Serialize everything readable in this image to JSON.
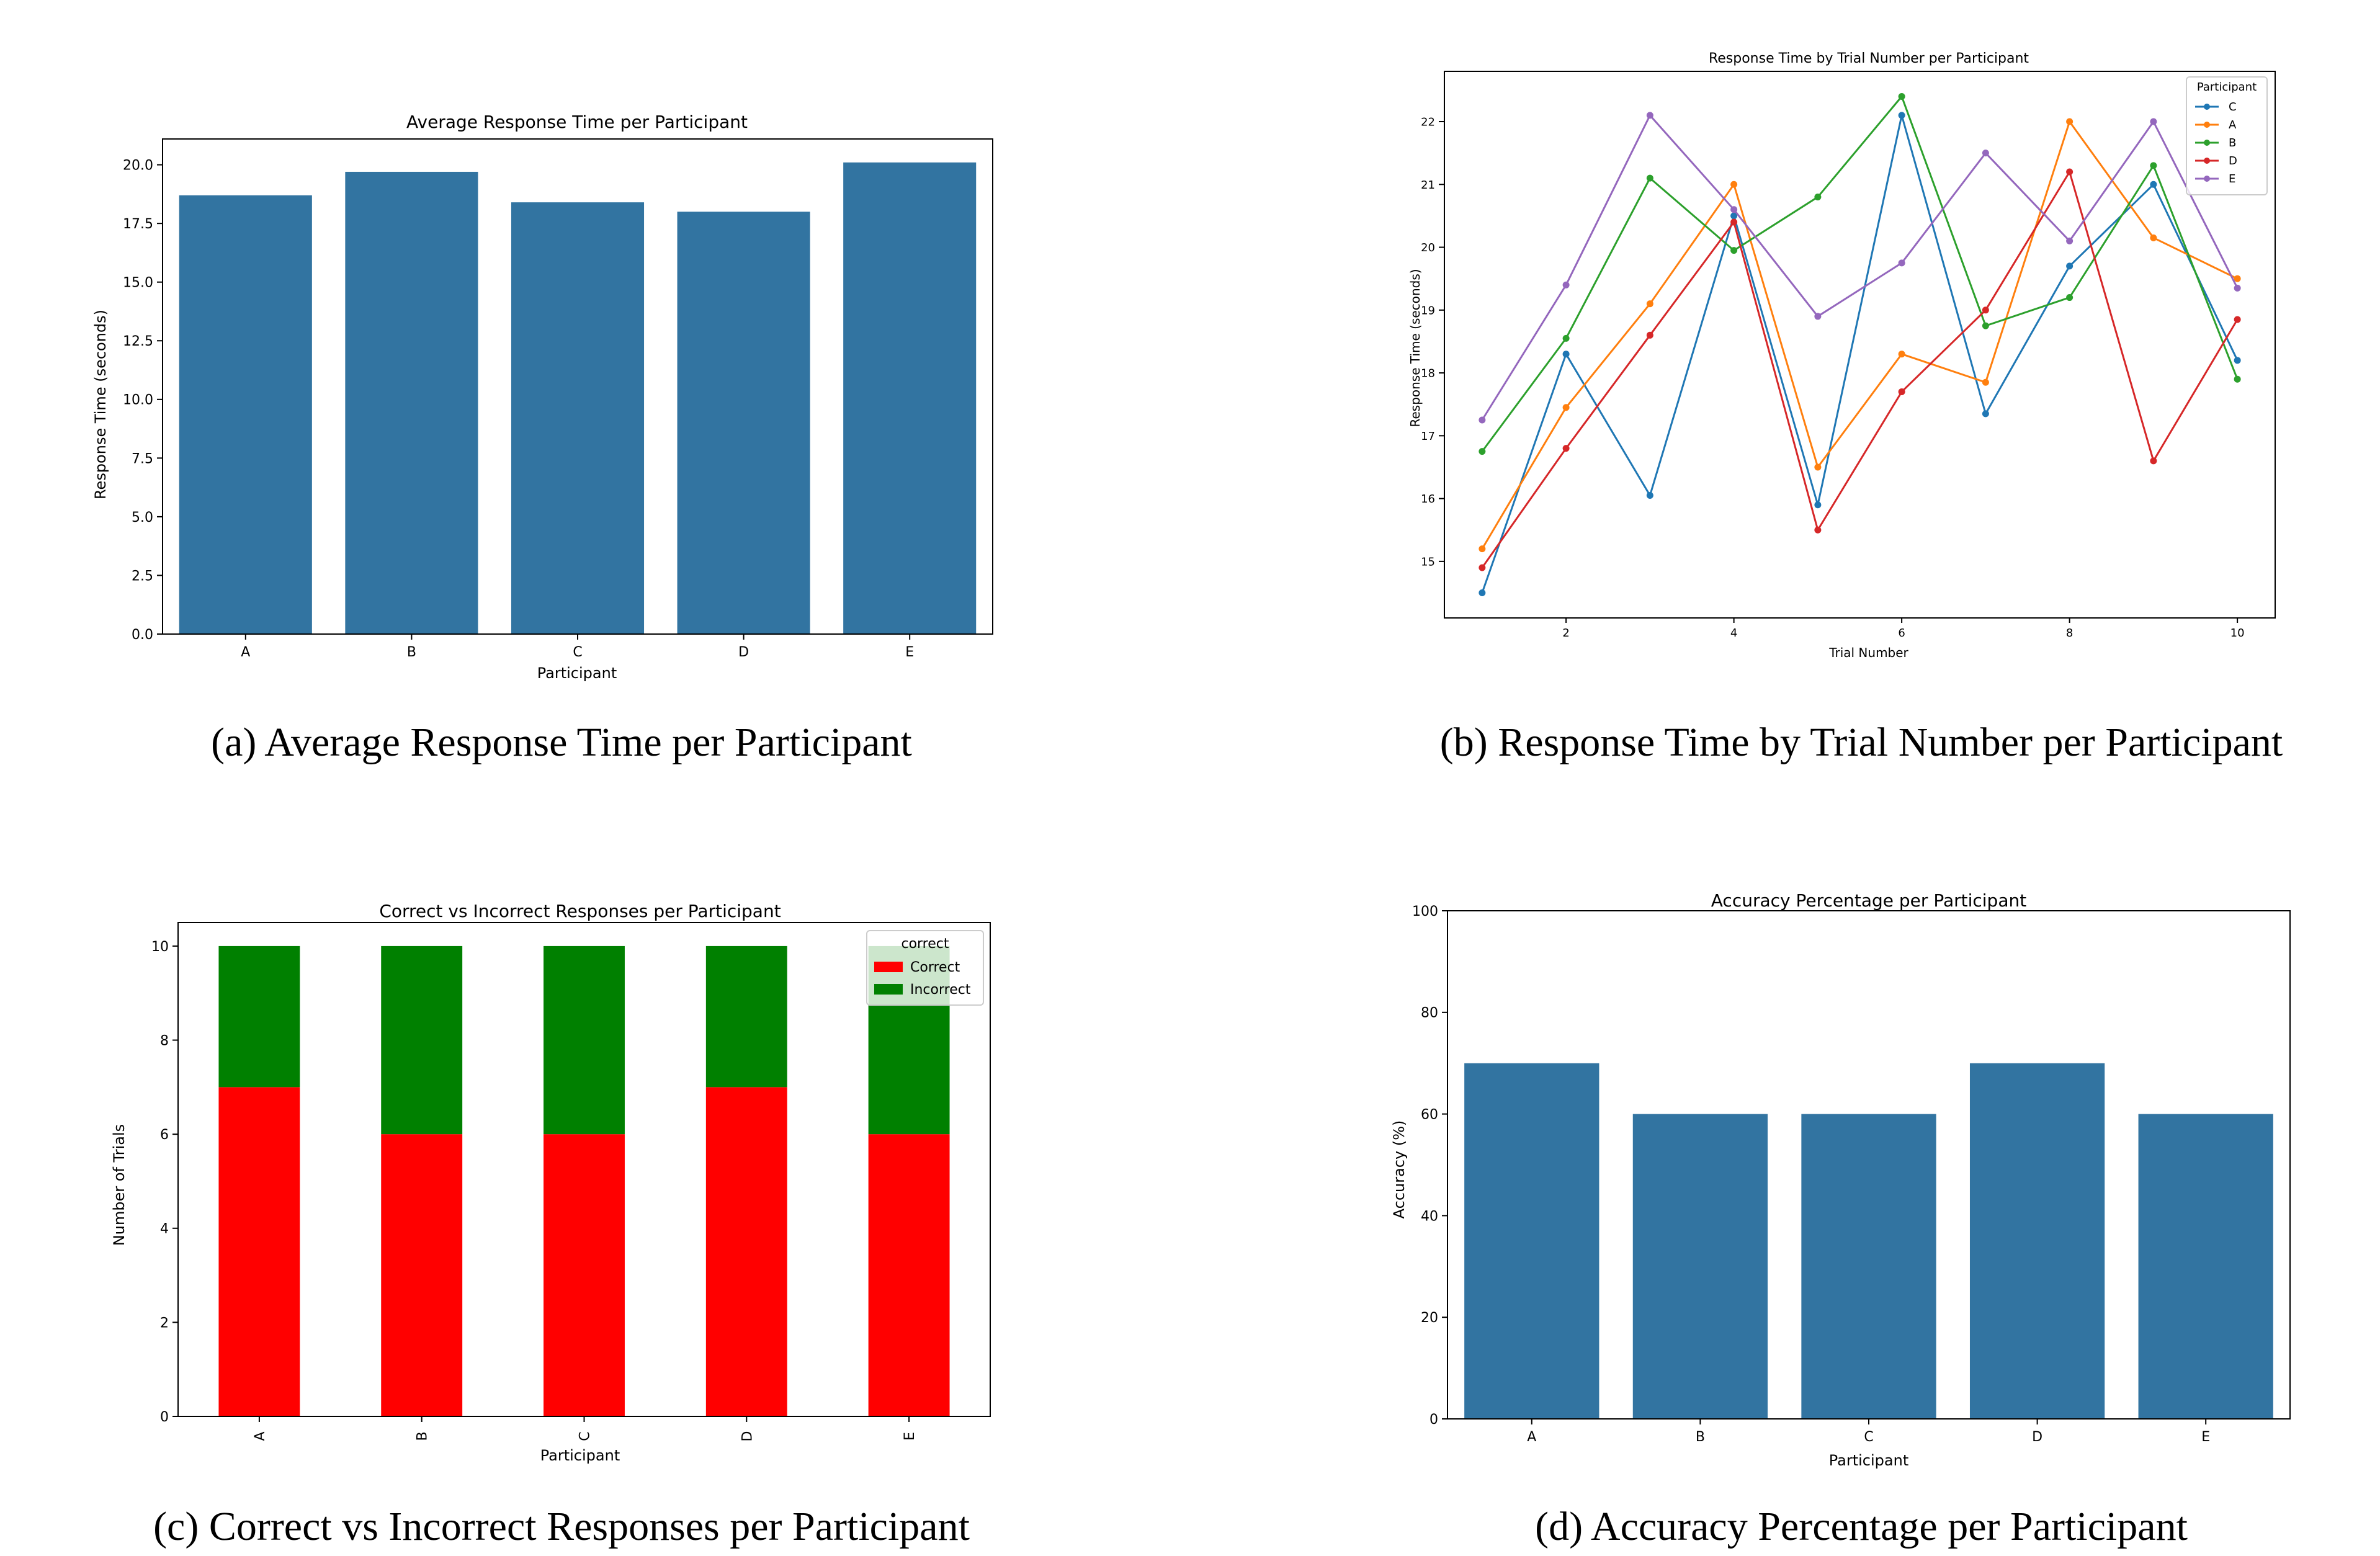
{
  "chart_data": [
    {
      "id": "a",
      "type": "bar",
      "title": "Average Response Time per Participant",
      "caption": "(a) Average Response Time per Participant",
      "xlabel": "Participant",
      "ylabel": "Response Time (seconds)",
      "categories": [
        "A",
        "B",
        "C",
        "D",
        "E"
      ],
      "values": [
        18.7,
        19.7,
        18.4,
        18.0,
        20.1
      ],
      "ylim": [
        0,
        21.1
      ],
      "yticks": [
        0.0,
        2.5,
        5.0,
        7.5,
        10.0,
        12.5,
        15.0,
        17.5,
        20.0
      ],
      "ytick_labels": [
        "0.0",
        "2.5",
        "5.0",
        "7.5",
        "10.0",
        "12.5",
        "15.0",
        "17.5",
        "20.0"
      ],
      "color": "#3274a1",
      "grid": false
    },
    {
      "id": "b",
      "type": "line",
      "title": "Response Time by Trial Number per Participant",
      "caption": "(b) Response Time by Trial Number per Participant",
      "xlabel": "Trial Number",
      "ylabel": "Response Time (seconds)",
      "x": [
        1,
        2,
        3,
        4,
        5,
        6,
        7,
        8,
        9,
        10
      ],
      "xlim": [
        0.55,
        10.45
      ],
      "ylim": [
        14.1,
        22.8
      ],
      "xticks": [
        2,
        4,
        6,
        8,
        10
      ],
      "xtick_labels": [
        "2",
        "4",
        "6",
        "8",
        "10"
      ],
      "yticks": [
        15,
        16,
        17,
        18,
        19,
        20,
        21,
        22
      ],
      "ytick_labels": [
        "15",
        "16",
        "17",
        "18",
        "19",
        "20",
        "21",
        "22"
      ],
      "legend_title": "Participant",
      "legend_position": "top-right",
      "grid": false,
      "series": [
        {
          "name": "C",
          "color": "#1f77b4",
          "values": [
            14.5,
            18.3,
            16.05,
            20.5,
            15.9,
            22.1,
            17.35,
            19.7,
            21.0,
            18.2
          ]
        },
        {
          "name": "A",
          "color": "#ff7f0e",
          "values": [
            15.2,
            17.45,
            19.1,
            21.0,
            16.5,
            18.3,
            17.85,
            22.0,
            20.15,
            19.5
          ]
        },
        {
          "name": "B",
          "color": "#2ca02c",
          "values": [
            16.75,
            18.55,
            21.1,
            19.95,
            20.8,
            22.4,
            18.75,
            19.2,
            21.3,
            17.9
          ]
        },
        {
          "name": "D",
          "color": "#d62728",
          "values": [
            14.9,
            16.8,
            18.6,
            20.4,
            15.5,
            17.7,
            19.0,
            21.2,
            16.6,
            18.85
          ]
        },
        {
          "name": "E",
          "color": "#9467bd",
          "values": [
            17.25,
            19.4,
            22.1,
            20.6,
            18.9,
            19.75,
            21.5,
            20.1,
            22.0,
            19.35
          ]
        }
      ]
    },
    {
      "id": "c",
      "type": "bar",
      "stacked": true,
      "title": "Correct vs Incorrect Responses per Participant",
      "caption": "(c) Correct vs Incorrect Responses per Participant",
      "xlabel": "Participant",
      "ylabel": "Number of Trials",
      "categories": [
        "A",
        "B",
        "C",
        "D",
        "E"
      ],
      "ylim": [
        0,
        10.5
      ],
      "yticks": [
        0,
        2,
        4,
        6,
        8,
        10
      ],
      "ytick_labels": [
        "0",
        "2",
        "4",
        "6",
        "8",
        "10"
      ],
      "legend_title": "correct",
      "legend_position": "top-right",
      "grid": false,
      "series": [
        {
          "name": "Correct",
          "color": "#ff0000",
          "values": [
            7,
            6,
            6,
            7,
            6
          ]
        },
        {
          "name": "Incorrect",
          "color": "#008000",
          "values": [
            3,
            4,
            4,
            3,
            4
          ]
        }
      ]
    },
    {
      "id": "d",
      "type": "bar",
      "title": "Accuracy Percentage per Participant",
      "caption": "(d) Accuracy Percentage per Participant",
      "xlabel": "Participant",
      "ylabel": "Accuracy (%)",
      "categories": [
        "A",
        "B",
        "C",
        "D",
        "E"
      ],
      "values": [
        70,
        60,
        60,
        70,
        60
      ],
      "ylim": [
        0,
        100
      ],
      "yticks": [
        0,
        20,
        40,
        60,
        80,
        100
      ],
      "ytick_labels": [
        "0",
        "20",
        "40",
        "60",
        "80",
        "100"
      ],
      "color": "#3274a1",
      "grid": false
    }
  ]
}
